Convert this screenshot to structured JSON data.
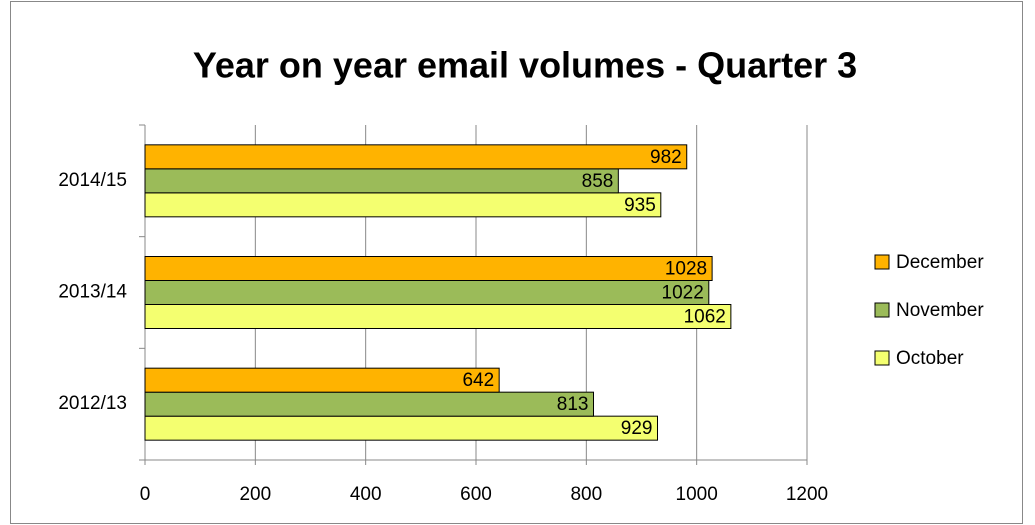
{
  "chart_data": {
    "type": "bar",
    "orientation": "horizontal",
    "title": "Year on year email volumes - Quarter 3",
    "categories": [
      "2012/13",
      "2013/14",
      "2014/15"
    ],
    "series": [
      {
        "name": "October",
        "color": "#f4ff70",
        "values": [
          929,
          1062,
          935
        ]
      },
      {
        "name": "November",
        "color": "#9bbb59",
        "values": [
          813,
          1022,
          858
        ]
      },
      {
        "name": "December",
        "color": "#ffb300",
        "values": [
          642,
          1028,
          982
        ]
      }
    ],
    "xlim": [
      0,
      1200
    ],
    "xticks": [
      0,
      200,
      400,
      600,
      800,
      1000,
      1200
    ],
    "grid": true,
    "legend": "right",
    "data_labels": true
  }
}
